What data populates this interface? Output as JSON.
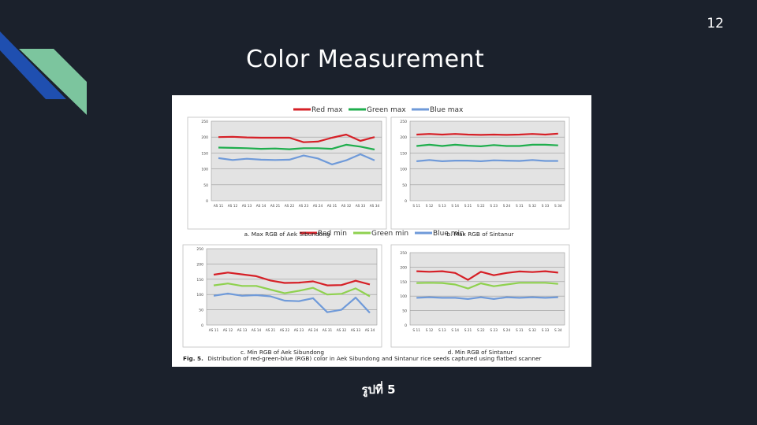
{
  "slide": {
    "number": "12",
    "title": "Color Measurement",
    "caption": "รูปที่ 5"
  },
  "colors": {
    "background": "#1b212c",
    "red": "#d62027",
    "green_max": "#1fae4d",
    "green_min": "#8fd14f",
    "blue": "#6f9ad9",
    "deco_blue": "#1f4fb0",
    "deco_green": "#7cc59e"
  },
  "figure": {
    "legend_top": [
      "Red max",
      "Green max",
      "Blue max"
    ],
    "legend_bottom": [
      "Red min",
      "Green min",
      "Blue min"
    ],
    "footnote_label": "Fig. 5.",
    "footnote_text": "Distribution of red-green-blue (RGB) color in Aek Sibundong and Sintanur rice seeds captured using flatbed scanner"
  },
  "chart_data": [
    {
      "type": "line",
      "title": "a. Max RGB of Aek Sibundong",
      "categories": [
        "AS 11",
        "AS 12",
        "AS 13",
        "AS 14",
        "AS 21",
        "AS 22",
        "AS 23",
        "AS 24",
        "AS 31",
        "AS 32",
        "AS 33",
        "AS 34"
      ],
      "ylim": [
        0,
        250
      ],
      "yticks": [
        0,
        50,
        100,
        150,
        200,
        250
      ],
      "grid": true,
      "series": [
        {
          "name": "Red max",
          "color": "red",
          "values": [
            200,
            201,
            199,
            198,
            198,
            198,
            184,
            186,
            198,
            208,
            188,
            200
          ]
        },
        {
          "name": "Green max",
          "color": "green_max",
          "values": [
            167,
            166,
            165,
            163,
            164,
            162,
            165,
            165,
            163,
            176,
            170,
            161
          ]
        },
        {
          "name": "Blue max",
          "color": "blue",
          "values": [
            134,
            128,
            132,
            129,
            128,
            129,
            142,
            133,
            114,
            127,
            146,
            127
          ]
        }
      ]
    },
    {
      "type": "line",
      "title": "b. Max RGB of Sintanur",
      "categories": [
        "S 11",
        "S 12",
        "S 13",
        "S 14",
        "S 21",
        "S 22",
        "S 23",
        "S 24",
        "S 31",
        "S 32",
        "S 33",
        "S 34"
      ],
      "ylim": [
        0,
        250
      ],
      "yticks": [
        0,
        50,
        100,
        150,
        200,
        250
      ],
      "grid": true,
      "series": [
        {
          "name": "Red max",
          "color": "red",
          "values": [
            208,
            210,
            208,
            210,
            208,
            207,
            208,
            207,
            208,
            210,
            208,
            211
          ]
        },
        {
          "name": "Green max",
          "color": "green_max",
          "values": [
            172,
            176,
            172,
            176,
            173,
            171,
            175,
            172,
            172,
            176,
            176,
            174
          ]
        },
        {
          "name": "Blue max",
          "color": "blue",
          "values": [
            124,
            128,
            124,
            126,
            126,
            124,
            127,
            126,
            125,
            128,
            125,
            125
          ]
        }
      ]
    },
    {
      "type": "line",
      "title": "c. Min RGB of Aek Sibundong",
      "categories": [
        "AS 11",
        "AS 12",
        "AS 13",
        "AS 14",
        "AS 21",
        "AS 22",
        "AS 23",
        "AS 24",
        "AS 31",
        "AS 32",
        "AS 33",
        "AS 34"
      ],
      "ylim": [
        0,
        250
      ],
      "yticks": [
        0,
        50,
        100,
        150,
        200,
        250
      ],
      "grid": true,
      "series": [
        {
          "name": "Red min",
          "color": "red",
          "values": [
            165,
            172,
            166,
            160,
            146,
            138,
            139,
            143,
            130,
            131,
            145,
            133
          ]
        },
        {
          "name": "Green min",
          "color": "green_min",
          "values": [
            130,
            136,
            128,
            128,
            116,
            104,
            112,
            122,
            100,
            102,
            120,
            94
          ]
        },
        {
          "name": "Blue min",
          "color": "blue",
          "values": [
            96,
            103,
            96,
            98,
            94,
            80,
            78,
            88,
            42,
            50,
            90,
            40
          ]
        }
      ]
    },
    {
      "type": "line",
      "title": "d. Min RGB of Sintanur",
      "categories": [
        "S 11",
        "S 12",
        "S 13",
        "S 14",
        "S 21",
        "S 22",
        "S 23",
        "S 24",
        "S 31",
        "S 32",
        "S 33",
        "S 34"
      ],
      "ylim": [
        0,
        250
      ],
      "yticks": [
        0,
        50,
        100,
        150,
        200,
        250
      ],
      "grid": true,
      "series": [
        {
          "name": "Red min",
          "color": "red",
          "values": [
            186,
            184,
            186,
            180,
            156,
            184,
            172,
            180,
            185,
            183,
            186,
            181
          ]
        },
        {
          "name": "Green min",
          "color": "green_min",
          "values": [
            145,
            146,
            145,
            140,
            126,
            144,
            134,
            140,
            146,
            146,
            146,
            142
          ]
        },
        {
          "name": "Blue min",
          "color": "blue",
          "values": [
            94,
            96,
            94,
            94,
            90,
            96,
            90,
            96,
            94,
            96,
            94,
            96
          ]
        }
      ]
    }
  ]
}
